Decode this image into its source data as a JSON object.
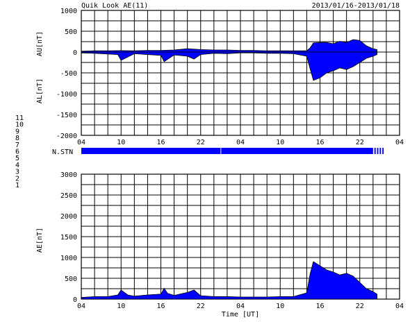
{
  "header": {
    "title": "Quik Look AE(11)",
    "date_range": "2013/01/16-2013/01/18"
  },
  "station_legend": [
    {
      "label": "11",
      "color": "#00e5ff"
    },
    {
      "label": "10",
      "color": "#ff00ff"
    },
    {
      "label": "9",
      "color": "#0000ff"
    },
    {
      "label": "8",
      "color": "#ffd700"
    },
    {
      "label": "7",
      "color": "#90ee90"
    },
    {
      "label": "6",
      "color": "#ff0000"
    },
    {
      "label": "5",
      "color": "#d3d3d3"
    },
    {
      "label": "4",
      "color": "#a0a0a0"
    },
    {
      "label": "3",
      "color": "#00c8c8"
    },
    {
      "label": "2",
      "color": "#cc00cc"
    },
    {
      "label": "1",
      "color": "#0000cc"
    }
  ],
  "colors": {
    "fill": "#0000ff",
    "outline": "#000000",
    "grid": "#000000"
  },
  "chart_data": [
    {
      "id": "au_al_panel",
      "type": "area",
      "ylabel_top": "AU[nT]",
      "ylabel_bottom": "AL[nT]",
      "ylim": [
        -2000,
        1000
      ],
      "yticks": [
        1000,
        500,
        0,
        -500,
        -1000,
        -1500,
        -2000
      ],
      "x_unit": "hours since 2013/01/16 04:00 UT",
      "xlim": [
        0,
        48
      ],
      "xtick_labels": [
        "04",
        "10",
        "16",
        "22",
        "04",
        "10",
        "16",
        "22",
        "04"
      ],
      "grid": true,
      "series": [
        {
          "name": "AU",
          "x": [
            0,
            2,
            4,
            6,
            8,
            10,
            12,
            14,
            16,
            18,
            20,
            22,
            24,
            26,
            28,
            30,
            32,
            34,
            34.5,
            35,
            36,
            37,
            38,
            39,
            40,
            41,
            42,
            43,
            44,
            44.6
          ],
          "values": [
            20,
            30,
            30,
            35,
            30,
            40,
            40,
            50,
            80,
            60,
            50,
            50,
            40,
            40,
            30,
            30,
            30,
            30,
            100,
            220,
            230,
            230,
            200,
            260,
            230,
            300,
            280,
            150,
            80,
            60
          ]
        },
        {
          "name": "AL",
          "x": [
            0,
            2,
            5.5,
            6,
            8,
            12,
            12.5,
            14,
            16,
            17,
            18,
            20,
            22,
            24,
            26,
            28,
            30,
            32,
            34,
            34.5,
            35,
            36,
            37,
            38,
            39,
            40,
            41,
            42,
            43,
            44,
            44.6
          ],
          "values": [
            -20,
            -30,
            -60,
            -200,
            -40,
            -80,
            -230,
            -70,
            -100,
            -170,
            -60,
            -30,
            -40,
            -20,
            -20,
            -30,
            -30,
            -40,
            -100,
            -400,
            -680,
            -620,
            -500,
            -450,
            -380,
            -420,
            -350,
            -250,
            -150,
            -100,
            -60
          ]
        }
      ]
    },
    {
      "id": "station_panel",
      "type": "bar",
      "label": "N.STN",
      "xlim": [
        0,
        48
      ],
      "available": [
        [
          0,
          21
        ],
        [
          21.1,
          44
        ],
        [
          44.2,
          44.4
        ],
        [
          44.6,
          44.8
        ],
        [
          45,
          45.2
        ],
        [
          45.4,
          45.6
        ]
      ]
    },
    {
      "id": "ae_panel",
      "type": "area",
      "ylabel": "AE[nT]",
      "xlabel": "Time [UT]",
      "ylim": [
        0,
        3000
      ],
      "yticks": [
        3000,
        2500,
        2000,
        1500,
        1000,
        500,
        0
      ],
      "x_unit": "hours since 2013/01/16 04:00 UT",
      "xlim": [
        0,
        48
      ],
      "xtick_labels": [
        "04",
        "10",
        "16",
        "22",
        "04",
        "10",
        "16",
        "22",
        "04"
      ],
      "grid": true,
      "series": [
        {
          "name": "AE",
          "x": [
            0,
            2,
            4,
            5.5,
            6,
            7,
            8,
            10,
            12,
            12.5,
            13,
            14,
            16,
            17,
            18,
            20,
            22,
            24,
            26,
            28,
            30,
            32,
            34,
            34.5,
            35,
            36,
            37,
            38,
            39,
            40,
            41,
            42,
            43,
            44,
            44.6
          ],
          "values": [
            40,
            60,
            60,
            100,
            220,
            100,
            70,
            100,
            120,
            260,
            140,
            90,
            160,
            220,
            80,
            60,
            60,
            50,
            50,
            50,
            60,
            60,
            150,
            600,
            900,
            800,
            700,
            650,
            580,
            620,
            550,
            400,
            250,
            180,
            120
          ]
        }
      ]
    }
  ]
}
